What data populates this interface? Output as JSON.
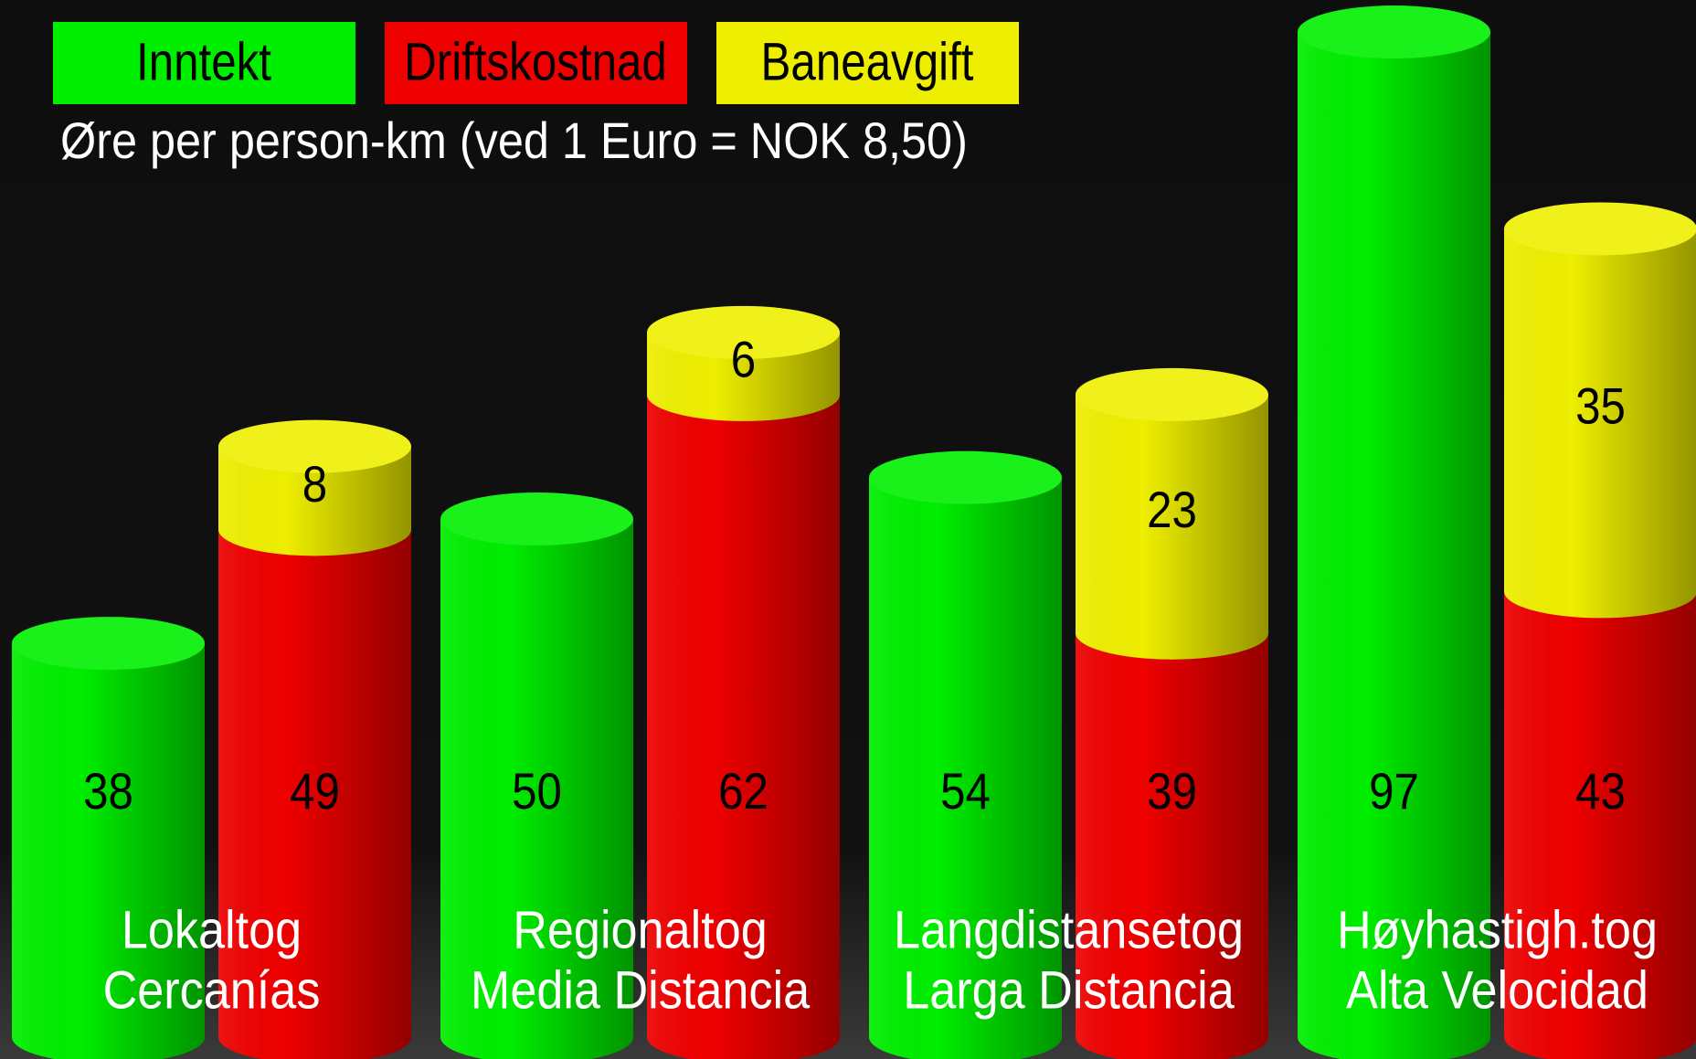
{
  "chart_data": {
    "type": "bar",
    "subtitle": "Øre per person-km (ved 1 Euro = NOK 8,50)",
    "categories": [
      [
        "Lokaltog",
        "Cercanías"
      ],
      [
        "Regionaltog",
        "Media Distancia"
      ],
      [
        "Langdistansetog",
        "Larga Distancia"
      ],
      [
        "Høyhastigh.tog",
        "Alta Velocidad"
      ]
    ],
    "series": [
      {
        "name": "Inntekt",
        "color": "#00ee00",
        "values": [
          38,
          50,
          54,
          97
        ]
      },
      {
        "name": "Driftskostnad",
        "color": "#ee0000",
        "values": [
          49,
          62,
          39,
          43
        ]
      },
      {
        "name": "Baneavgift",
        "color": "#eeee00",
        "values": [
          8,
          6,
          23,
          35
        ]
      }
    ],
    "stacks": [
      [
        0
      ],
      [
        1,
        2
      ]
    ],
    "legend": "top-left"
  }
}
